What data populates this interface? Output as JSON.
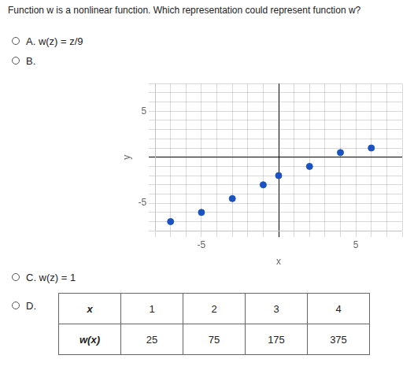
{
  "chart_data": {
    "type": "scatter",
    "title": "Function w is a nonlinear function. Which representation could represent function w?",
    "x": [
      -7,
      -5,
      -3,
      -1,
      0,
      2,
      4,
      6
    ],
    "values": [
      -7,
      -6,
      -4.5,
      -3,
      -2,
      -1,
      0.5,
      1
    ],
    "color": "#1a52c4",
    "xlabel": "x",
    "ylabel": "y",
    "xlim": [
      -8,
      8
    ],
    "ylim": [
      -8,
      8
    ],
    "xticks": [
      {
        "value": -8,
        "label": null
      },
      {
        "value": -7,
        "label": null
      },
      {
        "value": -6,
        "label": null
      },
      -5,
      {
        "value": -4,
        "label": null
      },
      {
        "value": -3,
        "label": null
      },
      {
        "value": -2,
        "label": null
      },
      {
        "value": -1,
        "label": null
      },
      {
        "value": 0,
        "label": null
      },
      {
        "value": 1,
        "label": null
      },
      {
        "value": 2,
        "label": null
      },
      {
        "value": 3,
        "label": null
      },
      {
        "value": 4,
        "label": null
      },
      5,
      {
        "value": 6,
        "label": null
      },
      {
        "value": 7,
        "label": null
      },
      {
        "value": 8,
        "label": null
      }
    ],
    "yticks": [
      {
        "value": -8,
        "label": null
      },
      {
        "value": -7,
        "label": null
      },
      {
        "value": -6,
        "label": null
      },
      -5,
      {
        "value": -4,
        "label": null
      },
      {
        "value": -3,
        "label": null
      },
      {
        "value": -2,
        "label": null
      },
      {
        "value": -1,
        "label": null
      },
      {
        "value": 0,
        "label": null
      },
      {
        "value": 1,
        "label": null
      },
      {
        "value": 2,
        "label": null
      },
      {
        "value": 3,
        "label": null
      },
      {
        "value": 4,
        "label": null
      },
      5,
      {
        "value": 6,
        "label": null
      },
      {
        "value": 7,
        "label": null
      },
      {
        "value": 8,
        "label": null
      }
    ],
    "grid": true,
    "annotations": [
      "A.    w(z) = z/9",
      "B.",
      "C.    w(z) = 1",
      "D."
    ],
    "table": [
      [
        "x",
        "1",
        "2",
        "3",
        "4"
      ],
      [
        "w(x)",
        "25",
        "75",
        "175",
        "375"
      ]
    ]
  }
}
